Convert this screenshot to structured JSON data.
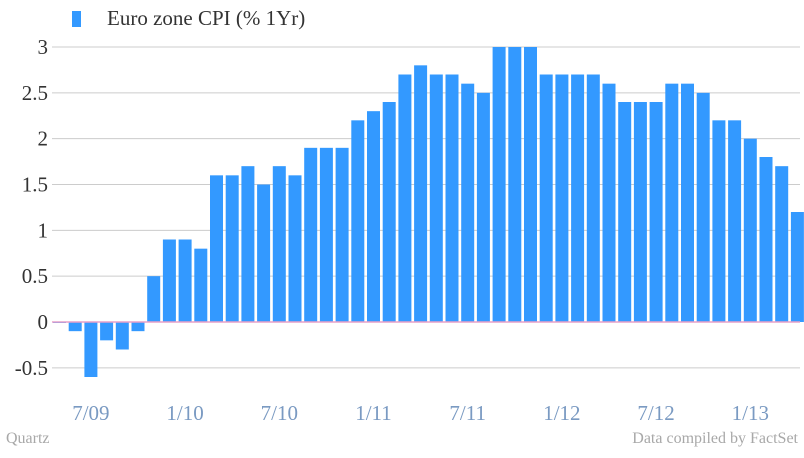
{
  "chart_data": {
    "type": "bar",
    "legend": "Euro zone CPI (% 1Yr)",
    "color": "#3399ff",
    "zero_line_color": "#e8a0c8",
    "grid_color": "#cccccc",
    "ylim": [
      -0.6,
      3
    ],
    "yticks": [
      "3",
      "2.5",
      "2",
      "1.5",
      "1",
      "0.5",
      "0",
      "-0.5"
    ],
    "ytick_values": [
      3,
      2.5,
      2,
      1.5,
      1,
      0.5,
      0,
      -0.5
    ],
    "xtick_labels": [
      "7/09",
      "1/10",
      "7/10",
      "1/11",
      "7/11",
      "1/12",
      "7/12",
      "1/13"
    ],
    "xtick_index": [
      2,
      8,
      14,
      20,
      26,
      32,
      38,
      44
    ],
    "values": [
      0,
      -0.1,
      -0.6,
      -0.2,
      -0.3,
      -0.1,
      0.5,
      0.9,
      0.9,
      0.8,
      1.6,
      1.6,
      1.7,
      1.5,
      1.7,
      1.6,
      1.9,
      1.9,
      1.9,
      2.2,
      2.3,
      2.4,
      2.7,
      2.8,
      2.7,
      2.7,
      2.6,
      2.5,
      3.0,
      3.0,
      3.0,
      2.7,
      2.7,
      2.7,
      2.7,
      2.6,
      2.4,
      2.4,
      2.4,
      2.6,
      2.6,
      2.5,
      2.2,
      2.2,
      2.0,
      1.8,
      1.7,
      1.2
    ]
  },
  "footer": {
    "source": "Quartz",
    "credit": "Data compiled by FactSet"
  }
}
